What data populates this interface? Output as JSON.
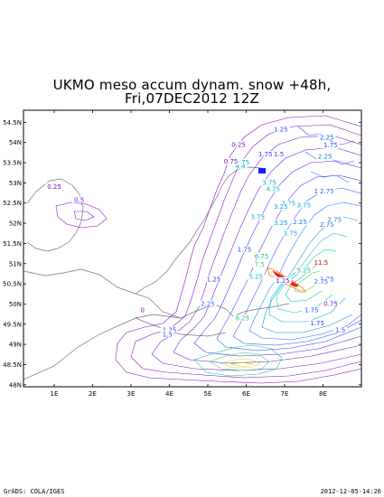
{
  "map": {
    "title_line1": "UKMO meso accum dynam. snow +48h,",
    "title_line2": "Fri,07DEC2012 12Z",
    "lat_labels": [
      "48N",
      "48.5N",
      "49N",
      "49.5N",
      "50N",
      "50.5N",
      "51N",
      "51.5N",
      "52N",
      "52.5N",
      "53N",
      "53.5N",
      "54N",
      "54.5N"
    ],
    "lon_labels": [
      "1E",
      "2E",
      "3E",
      "4E",
      "5E",
      "6E",
      "7E",
      "8E"
    ],
    "contour_labels": [
      {
        "text": "0.25",
        "lon": 5.8,
        "lat": 53.92,
        "color": "#8a00c8"
      },
      {
        "text": "1.25",
        "lon": 6.9,
        "lat": 54.3,
        "color": "#3a3aff"
      },
      {
        "text": "2.25",
        "lon": 8.1,
        "lat": 54.1,
        "color": "#1a5aff"
      },
      {
        "text": "1.75",
        "lon": 8.2,
        "lat": 53.9,
        "color": "#2050ff"
      },
      {
        "text": "2.25",
        "lon": 8.05,
        "lat": 53.62,
        "color": "#1a70ff"
      },
      {
        "text": "1.5",
        "lon": 6.85,
        "lat": 53.68,
        "color": "#2e3cff"
      },
      {
        "text": "1.75",
        "lon": 6.5,
        "lat": 53.68,
        "color": "#2e3cff"
      },
      {
        "text": "3.75",
        "lon": 5.9,
        "lat": 53.48,
        "color": "#00a8e0"
      },
      {
        "text": "4.4",
        "lon": 5.85,
        "lat": 53.38,
        "color": "#00b0c8"
      },
      {
        "text": "0.75",
        "lon": 5.6,
        "lat": 53.5,
        "color": "#6a10d8"
      },
      {
        "text": "3.75",
        "lon": 6.6,
        "lat": 52.98,
        "color": "#00b0d8"
      },
      {
        "text": "4.75",
        "lon": 6.7,
        "lat": 52.82,
        "color": "#00c0c0"
      },
      {
        "text": "1.5",
        "lon": 7.9,
        "lat": 52.76,
        "color": "#3040ff"
      },
      {
        "text": "2.75",
        "lon": 8.1,
        "lat": 52.76,
        "color": "#1a70ff"
      },
      {
        "text": "3.75",
        "lon": 7.1,
        "lat": 52.46,
        "color": "#00b0d8"
      },
      {
        "text": "3.75",
        "lon": 7.5,
        "lat": 52.42,
        "color": "#00b0d8"
      },
      {
        "text": "3.25",
        "lon": 6.9,
        "lat": 52.38,
        "color": "#00a0e8"
      },
      {
        "text": "3.75",
        "lon": 6.3,
        "lat": 52.13,
        "color": "#00b0d8"
      },
      {
        "text": "3.25",
        "lon": 6.9,
        "lat": 51.98,
        "color": "#00a0e8"
      },
      {
        "text": "2.25",
        "lon": 7.4,
        "lat": 52.0,
        "color": "#1a70ff"
      },
      {
        "text": "2.75",
        "lon": 8.1,
        "lat": 51.94,
        "color": "#1a70ff"
      },
      {
        "text": "2.75",
        "lon": 8.3,
        "lat": 52.06,
        "color": "#1a70ff"
      },
      {
        "text": "1.75",
        "lon": 5.95,
        "lat": 51.32,
        "color": "#2050ff"
      },
      {
        "text": "11.5",
        "lon": 7.95,
        "lat": 51.0,
        "color": "#d00000"
      },
      {
        "text": "6.75",
        "lon": 6.4,
        "lat": 51.15,
        "color": "#00c080"
      },
      {
        "text": "5.25",
        "lon": 7.5,
        "lat": 50.8,
        "color": "#00c8a0"
      },
      {
        "text": "1.25",
        "lon": 5.15,
        "lat": 50.58,
        "color": "#4030ff"
      },
      {
        "text": "1.25",
        "lon": 6.95,
        "lat": 50.55,
        "color": "#4030ff"
      },
      {
        "text": "1.75",
        "lon": 8.1,
        "lat": 50.58,
        "color": "#2050ff"
      },
      {
        "text": "2.75",
        "lon": 7.95,
        "lat": 50.52,
        "color": "#1a70ff"
      },
      {
        "text": "2.25",
        "lon": 5.0,
        "lat": 49.98,
        "color": "#1a70ff"
      },
      {
        "text": "0.75",
        "lon": 8.2,
        "lat": 49.98,
        "color": "#6a10d8"
      },
      {
        "text": "1.75",
        "lon": 7.7,
        "lat": 49.82,
        "color": "#2050ff"
      },
      {
        "text": "1.75",
        "lon": 7.85,
        "lat": 49.5,
        "color": "#2050ff"
      },
      {
        "text": "0",
        "lon": 3.3,
        "lat": 49.82,
        "color": "#8a00c8"
      },
      {
        "text": "1.25",
        "lon": 4.0,
        "lat": 49.33,
        "color": "#4030ff"
      },
      {
        "text": "1.5",
        "lon": 3.95,
        "lat": 49.22,
        "color": "#3040ff"
      },
      {
        "text": "1.5",
        "lon": 8.45,
        "lat": 49.33,
        "color": "#3040ff"
      },
      {
        "text": "0.25",
        "lon": 1.0,
        "lat": 52.88,
        "color": "#8a00c8"
      },
      {
        "text": "0.5",
        "lon": 1.65,
        "lat": 52.55,
        "color": "#7010d0"
      },
      {
        "text": "7.5",
        "lon": 6.35,
        "lat": 50.95,
        "color": "#40d060"
      },
      {
        "text": "5.25",
        "lon": 6.25,
        "lat": 50.65,
        "color": "#00c8a0"
      },
      {
        "text": "3.75",
        "lon": 7.15,
        "lat": 51.72,
        "color": "#00b0d8"
      },
      {
        "text": "6.25",
        "lon": 5.9,
        "lat": 49.62,
        "color": "#20c890"
      }
    ]
  },
  "footer": {
    "left": "GrADS: COLA/IGES",
    "right": "2012-12-05-14:26"
  }
}
